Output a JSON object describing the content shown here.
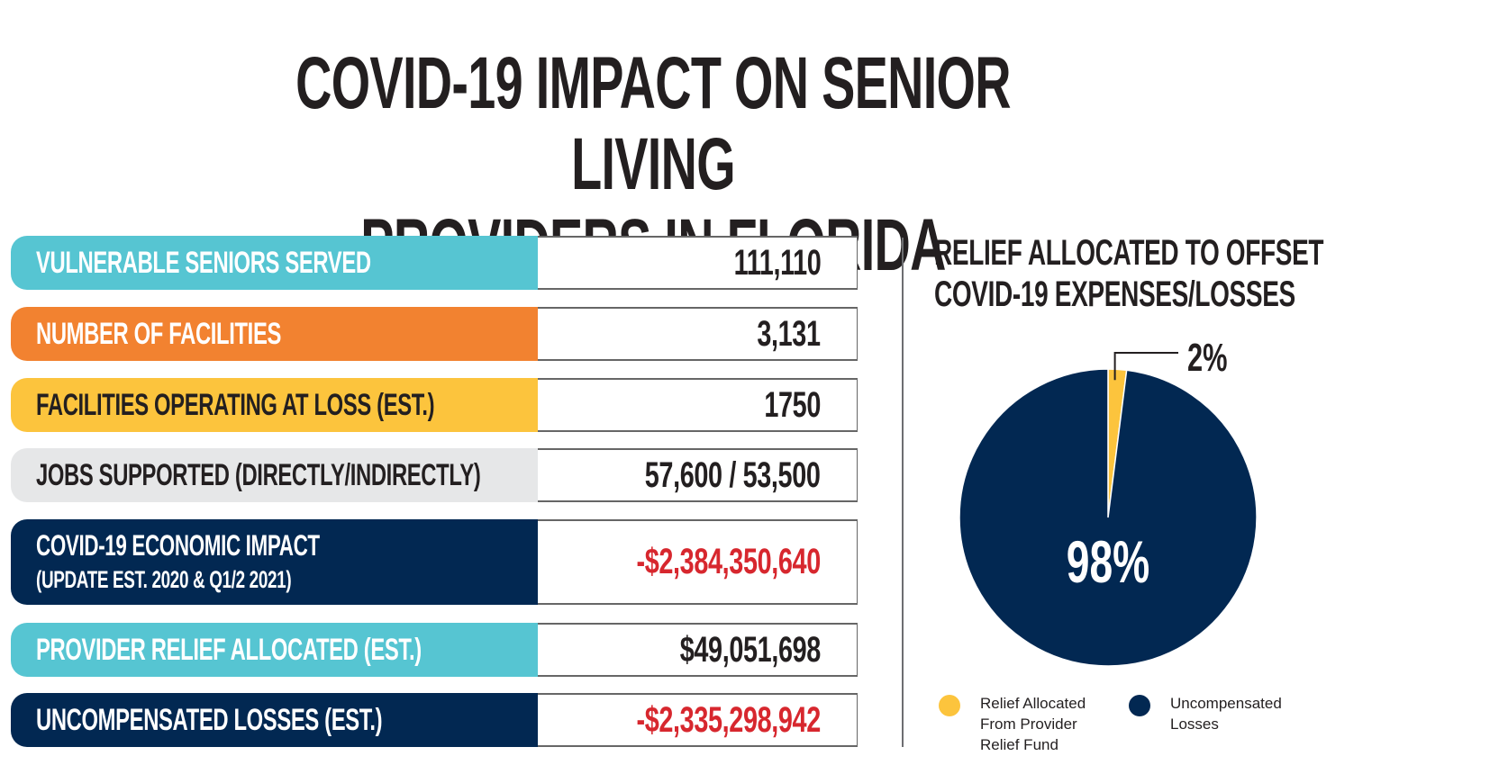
{
  "title": {
    "line1": "COVID-19 IMPACT ON SENIOR LIVING",
    "line2": "PROVIDERS IN FLORIDA"
  },
  "colors": {
    "teal": "#56c5d2",
    "orange": "#f28230",
    "yellow": "#fcc43d",
    "gray": "#e6e7e8",
    "navy": "#022852",
    "red": "#d7272e",
    "text": "#231f20"
  },
  "stats": [
    {
      "label": "VULNERABLE SENIORS SERVED",
      "sublabel": "",
      "value": "111,110",
      "color": "teal",
      "label_color": "white",
      "value_color": "text"
    },
    {
      "label": "NUMBER OF FACILITIES",
      "sublabel": "",
      "value": "3,131",
      "color": "orange",
      "label_color": "white",
      "value_color": "text"
    },
    {
      "label": "FACILITIES OPERATING AT LOSS (EST.)",
      "sublabel": "",
      "value": "1750",
      "color": "yellow",
      "label_color": "dark",
      "value_color": "text"
    },
    {
      "label": "JOBS SUPPORTED (DIRECTLY/INDIRECTLY)",
      "sublabel": "",
      "value": "57,600 / 53,500",
      "color": "gray",
      "label_color": "dark",
      "value_color": "text"
    },
    {
      "label": "COVID-19 ECONOMIC IMPACT",
      "sublabel": "(UPDATE EST. 2020 & Q1/2 2021)",
      "value": "-$2,384,350,640",
      "color": "navy",
      "label_color": "white",
      "value_color": "red"
    },
    {
      "label": "PROVIDER RELIEF ALLOCATED (EST.)",
      "sublabel": "",
      "value": "$49,051,698",
      "color": "teal",
      "label_color": "white",
      "value_color": "text"
    },
    {
      "label": "UNCOMPENSATED LOSSES (EST.)",
      "sublabel": "",
      "value": "-$2,335,298,942",
      "color": "navy",
      "label_color": "white",
      "value_color": "red"
    }
  ],
  "chart_data": {
    "type": "pie",
    "title": "RELIEF ALLOCATED TO OFFSET COVID-19 EXPENSES/LOSSES",
    "title_lines": [
      "RELIEF ALLOCATED TO OFFSET",
      "COVID-19 EXPENSES/LOSSES"
    ],
    "slices": [
      {
        "name": "Relief Allocated From Provider Relief Fund",
        "value": 2,
        "label": "2%",
        "color": "#fcc43d"
      },
      {
        "name": "Uncompensated Losses",
        "value": 98,
        "label": "98%",
        "color": "#022852"
      }
    ],
    "legend": [
      {
        "text": "Relief Allocated From Provider Relief Fund",
        "color": "#fcc43d"
      },
      {
        "text": "Uncompensated Losses",
        "color": "#022852"
      }
    ],
    "legend_position": "bottom"
  }
}
